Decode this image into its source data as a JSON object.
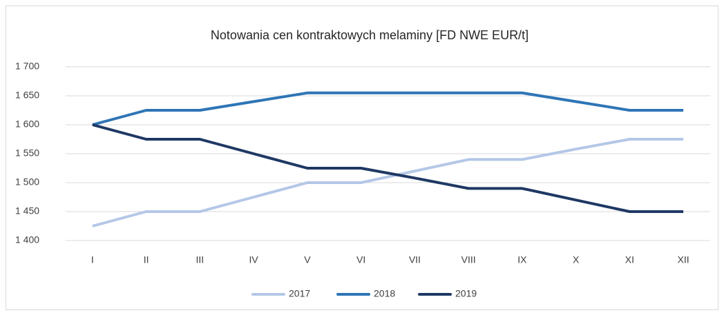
{
  "chart_data": {
    "type": "line",
    "title": "Notowania cen kontraktowych melaminy [FD NWE EUR/t]",
    "categories": [
      "I",
      "II",
      "III",
      "IV",
      "V",
      "VI",
      "VII",
      "VIII",
      "IX",
      "X",
      "XI",
      "XII"
    ],
    "series": [
      {
        "name": "2017",
        "color": "#b4c7e7",
        "values": [
          1425,
          1450,
          1450,
          1475,
          1500,
          1500,
          1520,
          1540,
          1540,
          1558,
          1575,
          1575
        ]
      },
      {
        "name": "2018",
        "color": "#2e75b6",
        "values": [
          1600,
          1625,
          1625,
          1640,
          1655,
          1655,
          1655,
          1655,
          1655,
          1640,
          1625,
          1625
        ]
      },
      {
        "name": "2019",
        "color": "#1f3864",
        "values": [
          1600,
          1575,
          1575,
          1550,
          1525,
          1525,
          1508,
          1490,
          1490,
          1470,
          1450,
          1450
        ]
      }
    ],
    "ylim": [
      1400,
      1700
    ],
    "yticks": [
      {
        "value": 1400,
        "label": "1 400"
      },
      {
        "value": 1450,
        "label": "1 450"
      },
      {
        "value": 1500,
        "label": "1 500"
      },
      {
        "value": 1550,
        "label": "1 550"
      },
      {
        "value": 1600,
        "label": "1 600"
      },
      {
        "value": 1650,
        "label": "1 650"
      },
      {
        "value": 1700,
        "label": "1 700"
      }
    ],
    "grid": true,
    "legend": "bottom"
  }
}
